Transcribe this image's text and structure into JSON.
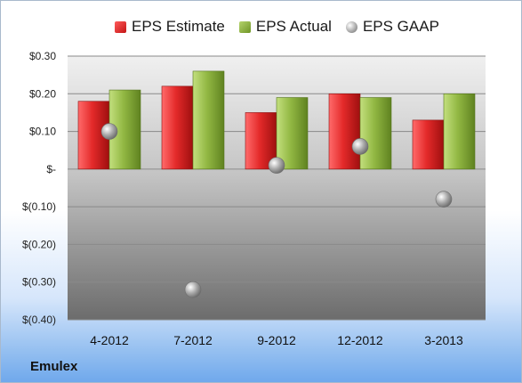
{
  "chart_data": {
    "type": "bar",
    "categories": [
      "4-2012",
      "7-2012",
      "9-2012",
      "12-2012",
      "3-2013"
    ],
    "series": [
      {
        "name": "EPS Estimate",
        "type": "bar",
        "color": "#d42222",
        "values": [
          0.18,
          0.22,
          0.15,
          0.2,
          0.13
        ]
      },
      {
        "name": "EPS Actual",
        "type": "bar",
        "color": "#8bb03a",
        "values": [
          0.21,
          0.26,
          0.19,
          0.19,
          0.2
        ]
      },
      {
        "name": "EPS GAAP",
        "type": "scatter",
        "color": "#a0a0a0",
        "values": [
          0.1,
          -0.32,
          0.01,
          0.06,
          -0.08
        ]
      }
    ],
    "ylim": [
      -0.4,
      0.3
    ],
    "yticks": [
      0.3,
      0.2,
      0.1,
      0.0,
      -0.1,
      -0.2,
      -0.3,
      -0.4
    ],
    "ytick_labels": [
      "$0.30",
      "$0.20",
      "$0.10",
      "$-",
      "$(0.10)",
      "$(0.20)",
      "$(0.30)",
      "$(0.40)"
    ],
    "grid": true,
    "legend_position": "top",
    "footer": "Emulex"
  }
}
